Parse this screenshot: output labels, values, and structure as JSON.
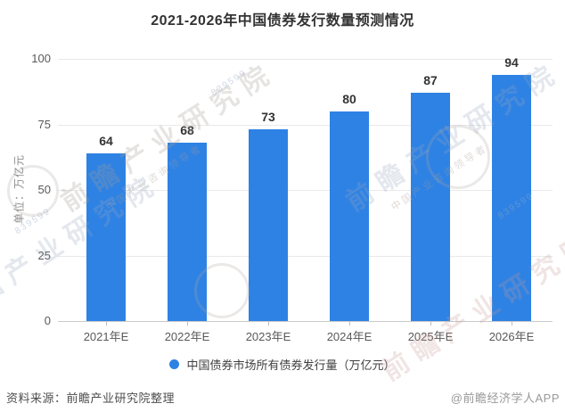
{
  "title": "2021-2026年中国债券发行数量预测情况",
  "chart_data": {
    "type": "bar",
    "title": "2021-2026年中国债券发行数量预测情况",
    "categories": [
      "2021年E",
      "2022年E",
      "2023年E",
      "2024年E",
      "2025年E",
      "2026年E"
    ],
    "values": [
      64,
      68,
      73,
      80,
      87,
      94
    ],
    "series_name": "中国债券市场所有债券发行量（万亿元）",
    "ylabel": "单位：万亿元",
    "ylim": [
      0,
      100
    ],
    "yticks": [
      0,
      25,
      50,
      75,
      100
    ],
    "grid": true,
    "legend_position": "bottom",
    "bar_color": "#2E82E4",
    "value_label_color": "#333333"
  },
  "y_axis": {
    "unit_label": "单位：万亿元"
  },
  "legend": {
    "label": "中国债券市场所有债券发行量（万亿元）",
    "marker_color": "#2E82E4"
  },
  "footer": {
    "source": "资料来源：前瞻产业研究院整理",
    "credit": "@前瞻经济学人APP"
  },
  "watermark": {
    "main": "前瞻产业研究院",
    "sub": "中国产业咨询领导者",
    "code": "839599"
  }
}
